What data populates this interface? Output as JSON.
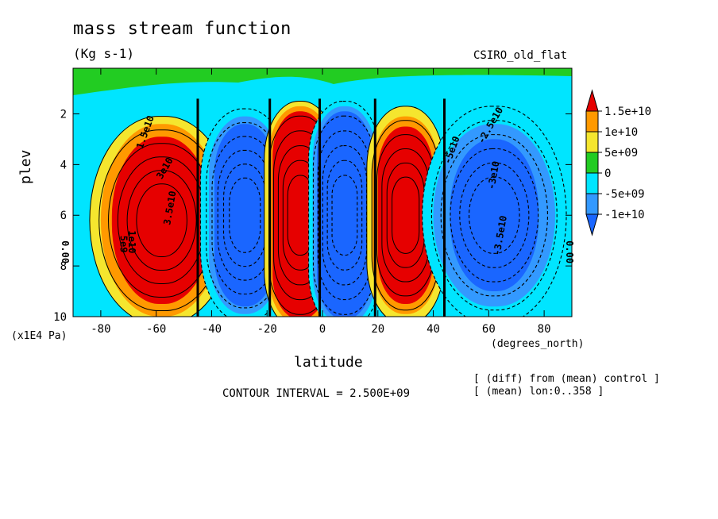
{
  "chart_data": {
    "type": "heatmap",
    "title": "mass stream function",
    "units": "(Kg s-1)",
    "dataset_label": "CSIRO_old_flat",
    "xlabel": "latitude",
    "x_units": "(degrees_north)",
    "ylabel": "plev",
    "y_units": "(x1E4 Pa)",
    "xlim": [
      -90,
      90
    ],
    "ylim": [
      10,
      0.2
    ],
    "x_ticks": [
      "-80",
      "-60",
      "-40",
      "-20",
      "0",
      "20",
      "40",
      "60",
      "80"
    ],
    "y_ticks": [
      "2",
      "4",
      "6",
      "8",
      "10"
    ],
    "contour_interval": "CONTOUR INTERVAL = 2.500E+09",
    "notes": [
      "[ (diff) from (mean) control ]",
      "[ (mean) lon:0..358 ]"
    ],
    "colorbar": {
      "labels": [
        "1.5e+10",
        "1e+10",
        "5e+09",
        "0",
        "-5e+09",
        "-1e+10"
      ],
      "colors": [
        "#e60000",
        "#ff9900",
        "#f5e62e",
        "#22cc22",
        "#00e5ff",
        "#3399ff",
        "#1a66ff"
      ]
    },
    "cells": [
      {
        "lat_center": -58,
        "plev_center": 6.2,
        "sign": "positive",
        "peak": "1.5e+10"
      },
      {
        "lat_center": -28,
        "plev_center": 6.0,
        "sign": "negative",
        "peak": "-1e+10"
      },
      {
        "lat_center": -8,
        "plev_center": 6.0,
        "sign": "positive",
        "peak": "1.5e+10"
      },
      {
        "lat_center": 8,
        "plev_center": 6.0,
        "sign": "negative",
        "peak": "-1e+10"
      },
      {
        "lat_center": 30,
        "plev_center": 6.0,
        "sign": "positive",
        "peak": "1.5e+10"
      },
      {
        "lat_center": 62,
        "plev_center": 6.0,
        "sign": "negative",
        "peak": "-1e+10"
      }
    ],
    "contour_labels": [
      "5e9",
      "1e10",
      "1.5e10",
      "3e10",
      "3.5e10",
      "0.00",
      "0.00",
      "-5e10",
      "-2.5e10",
      "-3e10",
      "-3.5e10"
    ]
  }
}
